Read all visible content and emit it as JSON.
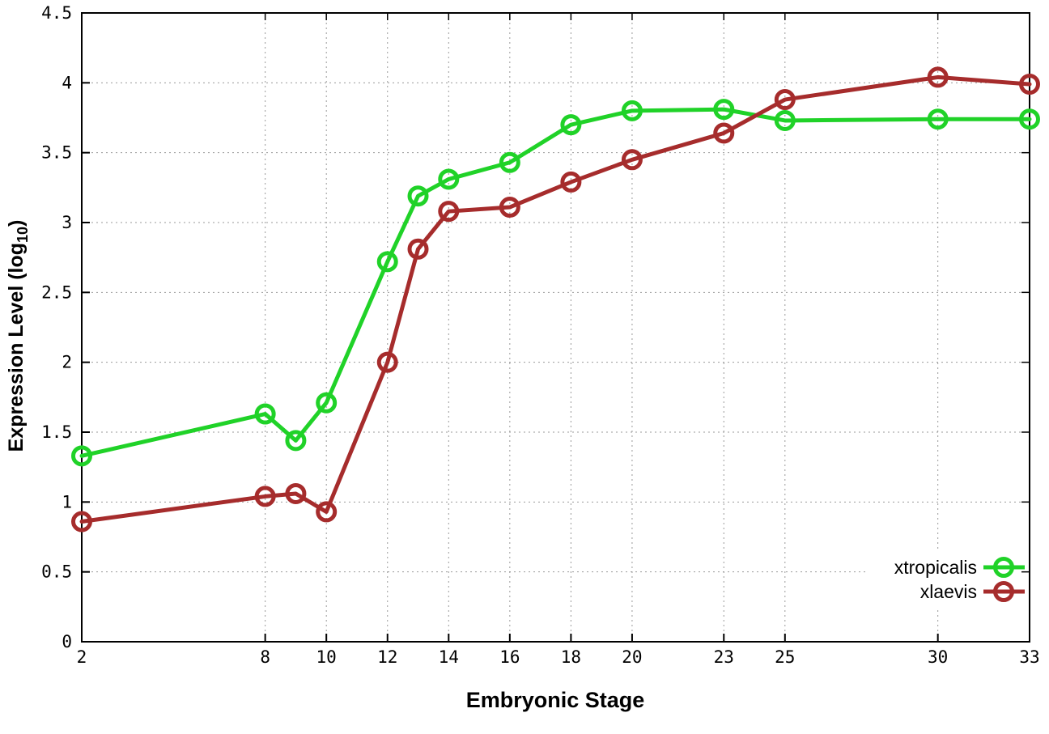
{
  "chart_data": {
    "type": "line",
    "title": "",
    "xlabel": "Embryonic Stage",
    "ylabel": {
      "pre": "Expression Level (log",
      "sub": "10",
      "post": ")"
    },
    "x": [
      2,
      8,
      9,
      10,
      12,
      13,
      14,
      16,
      18,
      20,
      23,
      25,
      30,
      33
    ],
    "series": [
      {
        "name": "xtropicalis",
        "color": "#20d228",
        "values": [
          1.33,
          1.63,
          1.44,
          1.71,
          2.72,
          3.19,
          3.31,
          3.43,
          3.7,
          3.8,
          3.81,
          3.73,
          3.74,
          3.74
        ]
      },
      {
        "name": "xlaevis",
        "color": "#a62c2c",
        "values": [
          0.86,
          1.04,
          1.06,
          0.93,
          2.0,
          2.81,
          3.08,
          3.11,
          3.29,
          3.45,
          3.64,
          3.88,
          4.04,
          3.99
        ]
      }
    ],
    "x_ticks": [
      2,
      8,
      10,
      12,
      14,
      16,
      18,
      20,
      23,
      25,
      30,
      33
    ],
    "y_ticks": [
      0,
      0.5,
      1,
      1.5,
      2,
      2.5,
      3,
      3.5,
      4,
      4.5
    ],
    "xlim": [
      2,
      33
    ],
    "ylim": [
      0,
      4.5
    ],
    "grid": "dotted",
    "legend": {
      "position": "bottom-right-inside"
    }
  },
  "colors": {
    "background": "#ffffff",
    "axis": "#000000",
    "grid": "#999999",
    "text": "#000000"
  }
}
